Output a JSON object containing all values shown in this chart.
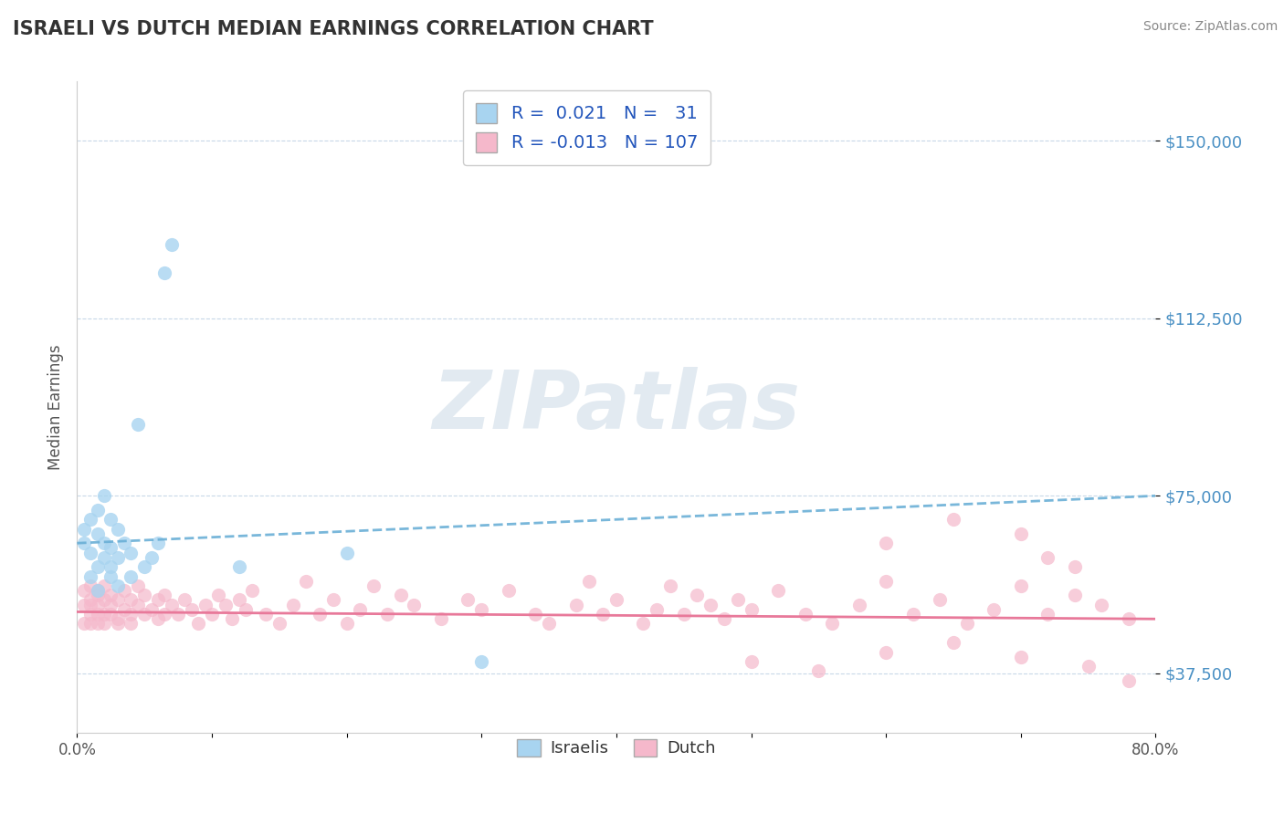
{
  "title": "ISRAELI VS DUTCH MEDIAN EARNINGS CORRELATION CHART",
  "source": "Source: ZipAtlas.com",
  "ylabel": "Median Earnings",
  "xlim": [
    0.0,
    0.8
  ],
  "ylim": [
    25000,
    162500
  ],
  "yticks": [
    37500,
    75000,
    112500,
    150000
  ],
  "ytick_labels": [
    "$37,500",
    "$75,000",
    "$112,500",
    "$150,000"
  ],
  "xtick_positions": [
    0.0,
    0.1,
    0.2,
    0.3,
    0.4,
    0.5,
    0.6,
    0.7,
    0.8
  ],
  "xtick_labels": [
    "0.0%",
    "",
    "",
    "",
    "",
    "",
    "",
    "",
    "80.0%"
  ],
  "israeli_R": 0.021,
  "israeli_N": 31,
  "dutch_R": -0.013,
  "dutch_N": 107,
  "israeli_color": "#a8d4f0",
  "dutch_color": "#f5b8cb",
  "trend_color_blue": "#6aafd6",
  "trend_color_pink": "#e8799a",
  "axis_label_color": "#4a90c4",
  "title_color": "#333333",
  "background_color": "#ffffff",
  "grid_color": "#c8d8e8",
  "watermark_color": "#d0dde8",
  "watermark_text": "ZIPatlas",
  "israeli_x": [
    0.005,
    0.005,
    0.01,
    0.01,
    0.01,
    0.015,
    0.015,
    0.015,
    0.015,
    0.02,
    0.02,
    0.02,
    0.025,
    0.025,
    0.025,
    0.025,
    0.03,
    0.03,
    0.03,
    0.035,
    0.04,
    0.04,
    0.045,
    0.05,
    0.055,
    0.06,
    0.065,
    0.07,
    0.12,
    0.2,
    0.3
  ],
  "israeli_y": [
    65000,
    68000,
    63000,
    70000,
    58000,
    72000,
    67000,
    60000,
    55000,
    75000,
    62000,
    65000,
    60000,
    70000,
    64000,
    58000,
    68000,
    62000,
    56000,
    65000,
    63000,
    58000,
    90000,
    60000,
    62000,
    65000,
    122000,
    128000,
    60000,
    63000,
    40000
  ],
  "dutch_x": [
    0.005,
    0.005,
    0.005,
    0.01,
    0.01,
    0.01,
    0.01,
    0.01,
    0.015,
    0.015,
    0.015,
    0.015,
    0.015,
    0.02,
    0.02,
    0.02,
    0.02,
    0.025,
    0.025,
    0.025,
    0.03,
    0.03,
    0.03,
    0.035,
    0.035,
    0.04,
    0.04,
    0.04,
    0.045,
    0.045,
    0.05,
    0.05,
    0.055,
    0.06,
    0.06,
    0.065,
    0.065,
    0.07,
    0.075,
    0.08,
    0.085,
    0.09,
    0.095,
    0.1,
    0.105,
    0.11,
    0.115,
    0.12,
    0.125,
    0.13,
    0.14,
    0.15,
    0.16,
    0.17,
    0.18,
    0.19,
    0.2,
    0.21,
    0.22,
    0.23,
    0.24,
    0.25,
    0.27,
    0.29,
    0.3,
    0.32,
    0.34,
    0.35,
    0.37,
    0.38,
    0.39,
    0.4,
    0.42,
    0.43,
    0.44,
    0.45,
    0.46,
    0.47,
    0.48,
    0.49,
    0.5,
    0.52,
    0.54,
    0.56,
    0.58,
    0.6,
    0.62,
    0.64,
    0.66,
    0.68,
    0.7,
    0.72,
    0.74,
    0.76,
    0.78,
    0.6,
    0.65,
    0.7,
    0.72,
    0.74,
    0.5,
    0.55,
    0.6,
    0.65,
    0.7,
    0.75,
    0.78
  ],
  "dutch_y": [
    52000,
    48000,
    55000,
    50000,
    53000,
    48000,
    56000,
    52000,
    50000,
    54000,
    48000,
    52000,
    55000,
    50000,
    53000,
    48000,
    56000,
    52000,
    50000,
    54000,
    49000,
    53000,
    48000,
    51000,
    55000,
    50000,
    53000,
    48000,
    52000,
    56000,
    50000,
    54000,
    51000,
    49000,
    53000,
    50000,
    54000,
    52000,
    50000,
    53000,
    51000,
    48000,
    52000,
    50000,
    54000,
    52000,
    49000,
    53000,
    51000,
    55000,
    50000,
    48000,
    52000,
    57000,
    50000,
    53000,
    48000,
    51000,
    56000,
    50000,
    54000,
    52000,
    49000,
    53000,
    51000,
    55000,
    50000,
    48000,
    52000,
    57000,
    50000,
    53000,
    48000,
    51000,
    56000,
    50000,
    54000,
    52000,
    49000,
    53000,
    51000,
    55000,
    50000,
    48000,
    52000,
    57000,
    50000,
    53000,
    48000,
    51000,
    56000,
    50000,
    54000,
    52000,
    49000,
    65000,
    70000,
    67000,
    62000,
    60000,
    40000,
    38000,
    42000,
    44000,
    41000,
    39000,
    36000
  ]
}
